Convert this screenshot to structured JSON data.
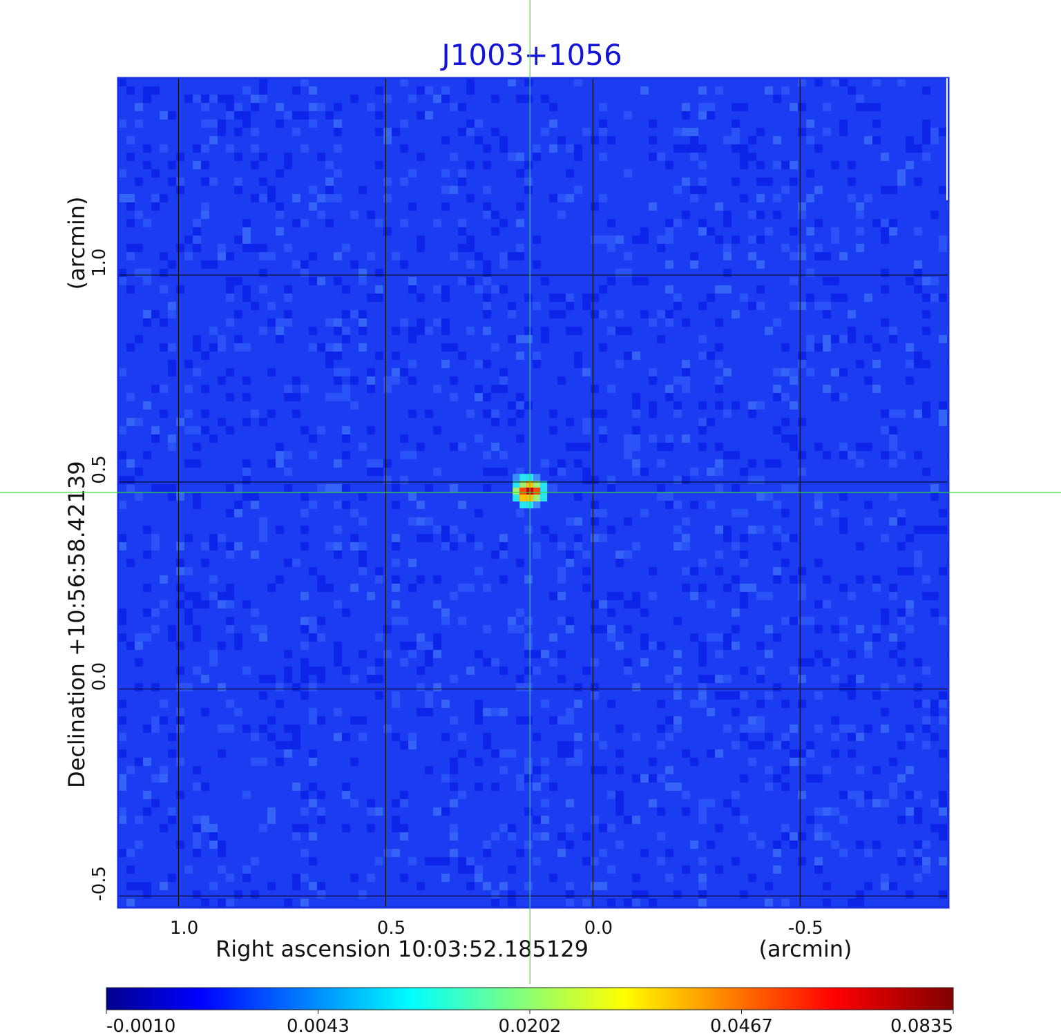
{
  "chart_data": {
    "type": "heatmap",
    "title": "J1003+1056",
    "xlabel": "Right ascension  10:03:52.185129",
    "xunit": "(arcmin)",
    "ylabel": "Declination  +10:56:58.42139",
    "yunit": "(arcmin)",
    "x_ticks": [
      1.0,
      0.5,
      0.0,
      -0.5
    ],
    "x_tick_labels": [
      "1.0",
      "0.5",
      "0.0",
      "-0.5"
    ],
    "y_ticks": [
      1.0,
      0.5,
      0.0,
      -0.5
    ],
    "y_tick_labels": [
      "1.0",
      "0.5",
      "0.0",
      "-0.5"
    ],
    "xlim": [
      1.146,
      -0.858
    ],
    "ylim": [
      -0.528,
      1.476
    ],
    "grid": true,
    "crosshair": {
      "x": 0.152,
      "y": 0.475,
      "color": "#33dd33"
    },
    "source": {
      "x": 0.152,
      "y": 0.478,
      "peak": 0.0835
    },
    "colorbar": {
      "min": -0.001,
      "max": 0.0835,
      "ticks": [
        -0.001,
        0.0043,
        0.0202,
        0.0467,
        0.0835
      ],
      "tick_labels": [
        "-0.0010",
        "0.0043",
        "0.0202",
        "0.0467",
        "0.0835"
      ],
      "colormap": "jet"
    },
    "colors": {
      "background_map": "#1c3cf2",
      "title": "#1414d4",
      "grid": "#000000"
    }
  }
}
